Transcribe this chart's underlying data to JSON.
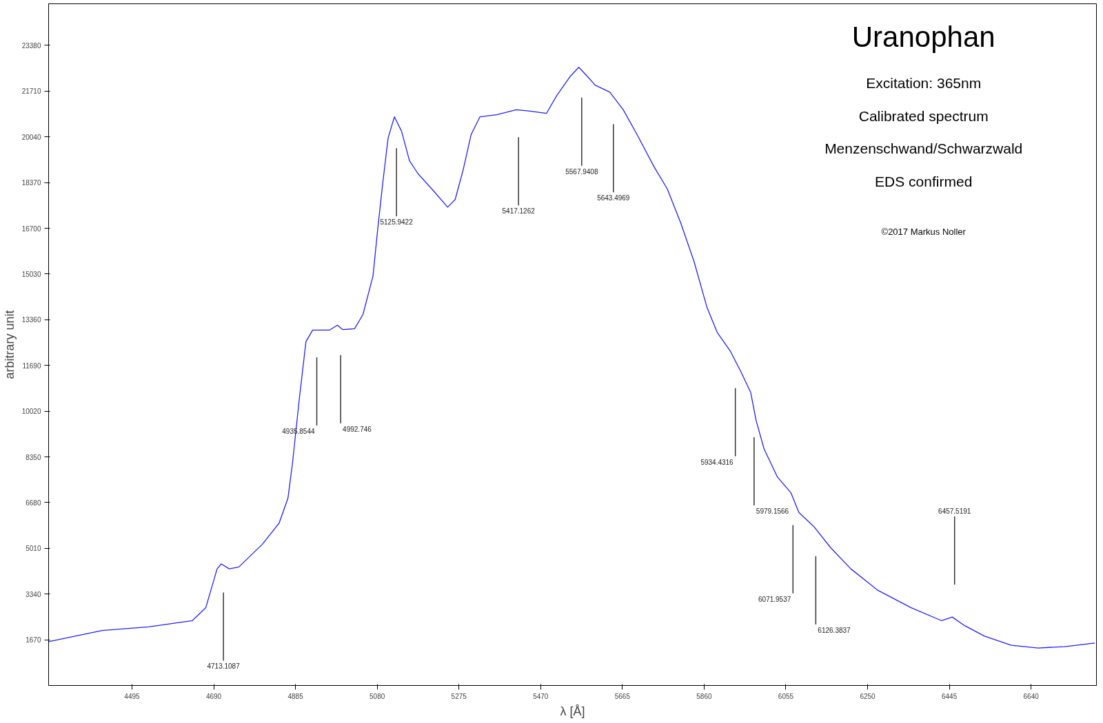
{
  "chart_data": {
    "type": "line",
    "title": "Uranophan",
    "subtitle": "Excitation: 365nm\nCalibrated spectrum\nMenzenschwand/Schwarzwald\nEDS confirmed",
    "xlabel": "λ [Å]",
    "ylabel": "arbitrary unit",
    "x": [
      4296,
      4424,
      4535,
      4639,
      4671,
      4698,
      4708,
      4727,
      4750,
      4806,
      4846,
      4867,
      4878,
      4894,
      4910,
      4926,
      4966,
      4985,
      4998,
      5026,
      5046,
      5070,
      5081,
      5093,
      5106,
      5121,
      5138,
      5157,
      5177,
      5213,
      5248,
      5266,
      5285,
      5304,
      5325,
      5365,
      5412,
      5444,
      5484,
      5508,
      5540,
      5561,
      5580,
      5600,
      5635,
      5667,
      5700,
      5740,
      5772,
      5804,
      5836,
      5867,
      5891,
      5923,
      5947,
      5971,
      5984,
      6003,
      6035,
      6067,
      6086,
      6122,
      6162,
      6210,
      6274,
      6354,
      6426,
      6452,
      6481,
      6529,
      6593,
      6657,
      6720,
      6792
    ],
    "series": [
      {
        "color": "#1f1fff",
        "values": [
          1600,
          2010,
          2140,
          2370,
          2840,
          4260,
          4440,
          4260,
          4330,
          5160,
          5930,
          6840,
          8130,
          10450,
          12560,
          12980,
          12980,
          13160,
          13000,
          13030,
          13550,
          14960,
          16640,
          18320,
          20000,
          20770,
          20250,
          19170,
          18700,
          18090,
          17470,
          17750,
          18830,
          20120,
          20770,
          20850,
          21030,
          20980,
          20900,
          21540,
          22240,
          22580,
          22270,
          21930,
          21670,
          21030,
          20120,
          18960,
          18140,
          16900,
          15480,
          13800,
          12900,
          12200,
          11480,
          10710,
          9680,
          8640,
          7610,
          7040,
          6320,
          5800,
          5030,
          4260,
          3480,
          2840,
          2370,
          2500,
          2190,
          1800,
          1470,
          1370,
          1420,
          1550
        ]
      }
    ],
    "xlim": [
      4296,
      6796
    ],
    "ylim": [
      0,
      24900
    ],
    "xticks": [
      4495,
      4690,
      4885,
      5080,
      5275,
      5470,
      5665,
      5860,
      6055,
      6250,
      6445,
      6640
    ],
    "yticks": [
      1670,
      3340,
      5010,
      6680,
      8350,
      10020,
      11690,
      13360,
      15030,
      16700,
      18370,
      20040,
      21710,
      23380
    ],
    "grid": false,
    "marker": "none",
    "line_style": "solid",
    "ref_lines": [
      {
        "axis": "x",
        "value": 4713.1087,
        "label": "4713.1087",
        "color": "#333333"
      },
      {
        "axis": "x",
        "value": 4935.8544,
        "label": "4935.8544",
        "color": "#333333"
      },
      {
        "axis": "x",
        "value": 4992.746,
        "label": "4992.746",
        "color": "#333333"
      },
      {
        "axis": "x",
        "value": 5125.9422,
        "label": "5125.9422",
        "color": "#333333"
      },
      {
        "axis": "x",
        "value": 5417.1262,
        "label": "5417.1262",
        "color": "#333333"
      },
      {
        "axis": "x",
        "value": 5567.9408,
        "label": "5567.9408",
        "color": "#333333"
      },
      {
        "axis": "x",
        "value": 5643.4969,
        "label": "5643.4969",
        "color": "#333333"
      },
      {
        "axis": "x",
        "value": 5934.4316,
        "label": "5934.4316",
        "color": "#333333"
      },
      {
        "axis": "x",
        "value": 5979.1566,
        "label": "5979.1566",
        "color": "#333333"
      },
      {
        "axis": "x",
        "value": 6071.9537,
        "label": "6071.9537",
        "color": "#333333"
      },
      {
        "axis": "x",
        "value": 6126.3837,
        "label": "6126.3837",
        "color": "#333333"
      },
      {
        "axis": "x",
        "value": 6457.5191,
        "label": "6457.5191",
        "color": "#333333"
      }
    ],
    "annotations": [
      "©2017 Markus Noller"
    ]
  }
}
